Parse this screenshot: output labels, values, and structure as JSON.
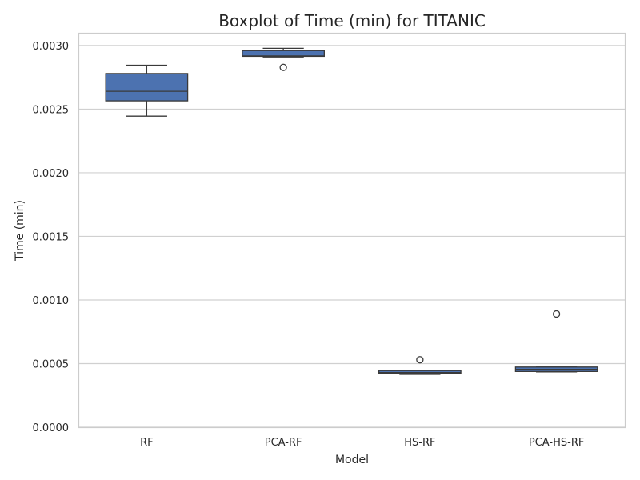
{
  "chart_data": {
    "type": "boxplot",
    "title": "Boxplot of Time (min) for TITANIC",
    "xlabel": "Model",
    "ylabel": "Time (min)",
    "ylim": [
      0,
      0.0031
    ],
    "yticks": [
      "0.0000",
      "0.0005",
      "0.0010",
      "0.0015",
      "0.0020",
      "0.0025",
      "0.0030"
    ],
    "grid": "horizontal",
    "box_color": "#4c72b0",
    "line_color": "#3a3a3a",
    "categories": [
      "RF",
      "PCA-RF",
      "HS-RF",
      "PCA-HS-RF"
    ],
    "boxes": [
      {
        "name": "RF",
        "whisker_low": 0.002445,
        "q1": 0.002565,
        "median": 0.00264,
        "q3": 0.00278,
        "whisker_high": 0.002845,
        "outliers": []
      },
      {
        "name": "PCA-RF",
        "whisker_low": 0.00291,
        "q1": 0.002915,
        "median": 0.002918,
        "q3": 0.00296,
        "whisker_high": 0.002978,
        "outliers": [
          0.002828
        ]
      },
      {
        "name": "HS-RF",
        "whisker_low": 0.000415,
        "q1": 0.000425,
        "median": 0.00043,
        "q3": 0.000445,
        "whisker_high": 0.000448,
        "outliers": [
          0.00053
        ]
      },
      {
        "name": "PCA-HS-RF",
        "whisker_low": 0.000435,
        "q1": 0.000438,
        "median": 0.000455,
        "q3": 0.000473,
        "whisker_high": 0.000473,
        "outliers": [
          0.00089
        ]
      }
    ]
  }
}
